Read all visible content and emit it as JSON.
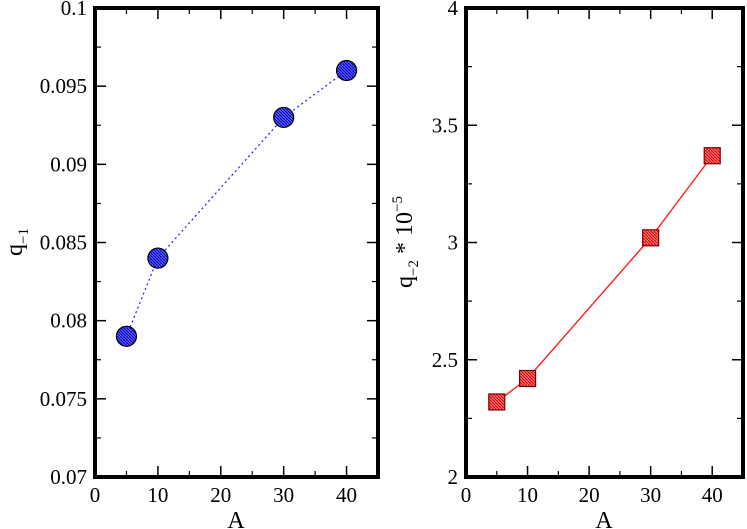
{
  "chart_data": [
    {
      "type": "line",
      "xlabel": "A",
      "ylabel": "q",
      "ylabel_subscript": "−1",
      "xlim": [
        0,
        45
      ],
      "ylim": [
        0.07,
        0.1
      ],
      "xticks": [
        0,
        10,
        20,
        30,
        40
      ],
      "xtick_labels": [
        "0",
        "10",
        "20",
        "30",
        "40"
      ],
      "yticks": [
        0.07,
        0.075,
        0.08,
        0.085,
        0.09,
        0.095,
        0.1
      ],
      "ytick_labels": [
        "0.07",
        "0.075",
        "0.08",
        "0.085",
        "0.09",
        "0.095",
        "0.1"
      ],
      "grid": false,
      "series": [
        {
          "marker": "circle",
          "line_style": "dotted",
          "color": "#1a1aff",
          "x": [
            5,
            10,
            30,
            40
          ],
          "y": [
            0.079,
            0.084,
            0.093,
            0.096
          ]
        }
      ]
    },
    {
      "type": "line",
      "xlabel": "A",
      "ylabel": "q",
      "ylabel_subscript": "−2",
      "ylabel_suffix": " * 10",
      "ylabel_superscript": "−5",
      "xlim": [
        0,
        45
      ],
      "ylim": [
        2,
        4
      ],
      "xticks": [
        0,
        10,
        20,
        30,
        40
      ],
      "xtick_labels": [
        "0",
        "10",
        "20",
        "30",
        "40"
      ],
      "yticks": [
        2,
        2.5,
        3,
        3.5,
        4
      ],
      "ytick_labels": [
        "2",
        "2.5",
        "3",
        "3.5",
        "4"
      ],
      "grid": false,
      "series": [
        {
          "marker": "square",
          "line_style": "solid",
          "color": "#ff2020",
          "x": [
            5,
            10,
            30,
            40
          ],
          "y": [
            2.32,
            2.42,
            3.02,
            3.37
          ]
        }
      ]
    }
  ]
}
